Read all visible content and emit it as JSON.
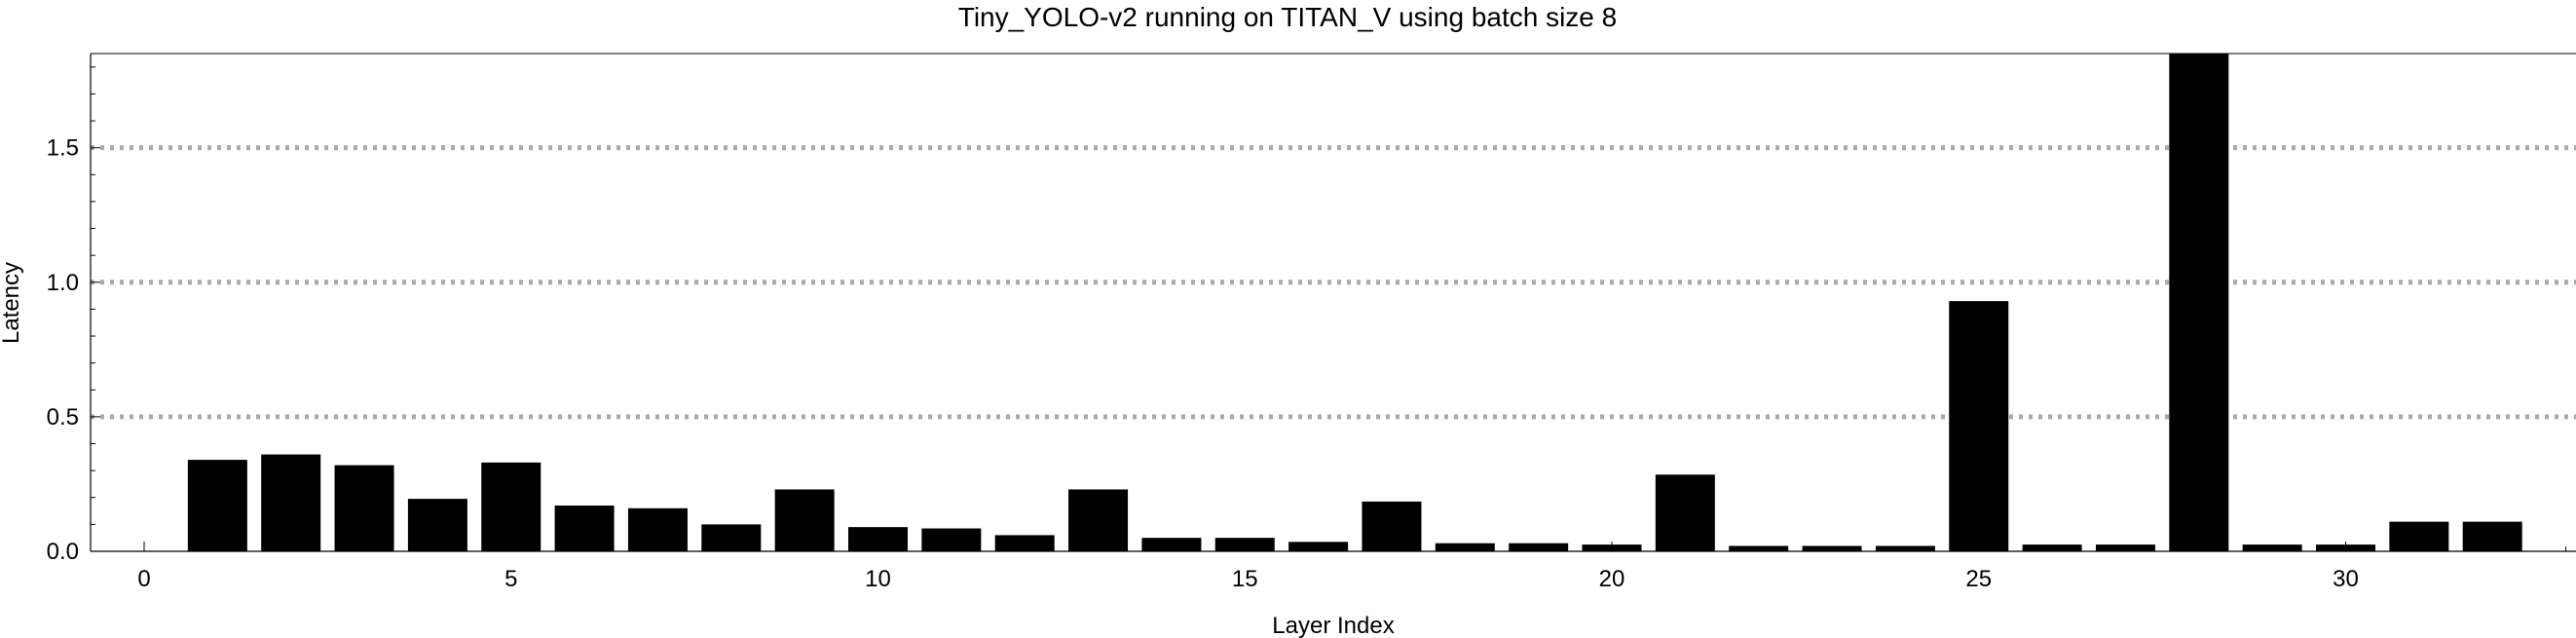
{
  "chart_data": {
    "type": "bar",
    "title": "Tiny_YOLO-v2 running on TITAN_V using batch size 8",
    "xlabel": "Layer Index",
    "ylabel": "Latency",
    "xlim": [
      -0.8,
      33.4
    ],
    "ylim": [
      0,
      1.85
    ],
    "x_ticks": [
      0,
      5,
      10,
      15,
      20,
      25,
      30
    ],
    "x_tick_labels": [
      "0",
      "5",
      "10",
      "15",
      "20",
      "25",
      "30"
    ],
    "y_ticks": [
      0.0,
      0.5,
      1.0,
      1.5
    ],
    "y_tick_labels": [
      "0.0",
      "0.5",
      "1.0",
      "1.5"
    ],
    "grid": "horizontal dotted at 0.5, 1.0, 1.5",
    "bar_color": "#000000",
    "grid_color": "#aaaaaa",
    "categories": [
      1,
      2,
      3,
      4,
      5,
      6,
      7,
      8,
      9,
      10,
      11,
      12,
      13,
      14,
      15,
      16,
      17,
      18,
      19,
      20,
      21,
      22,
      23,
      24,
      25,
      26,
      27,
      28,
      29,
      30,
      31,
      32
    ],
    "values": [
      0.34,
      0.36,
      0.32,
      0.195,
      0.33,
      0.17,
      0.16,
      0.1,
      0.23,
      0.09,
      0.085,
      0.06,
      0.23,
      0.05,
      0.05,
      0.035,
      0.185,
      0.03,
      0.03,
      0.025,
      0.285,
      0.02,
      0.02,
      0.02,
      0.93,
      0.025,
      0.025,
      1.85,
      0.025,
      0.025,
      0.11,
      0.11
    ]
  }
}
